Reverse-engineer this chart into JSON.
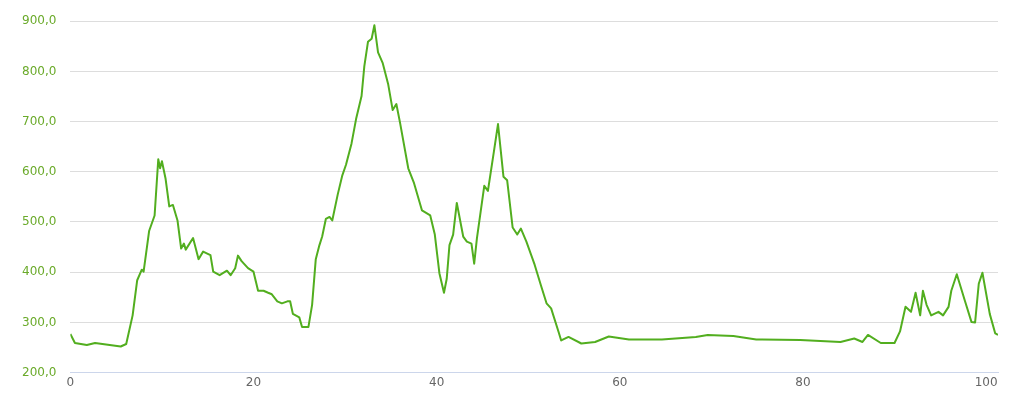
{
  "chart_data": {
    "type": "line",
    "xlim": [
      0,
      101.3
    ],
    "xticks": [
      0,
      20,
      40,
      60,
      80,
      100
    ],
    "ylim": [
      200,
      900
    ],
    "yticks": [
      {
        "value": 200,
        "label": "200,0"
      },
      {
        "value": 300,
        "label": "300,0"
      },
      {
        "value": 400,
        "label": "400,0"
      },
      {
        "value": 500,
        "label": "500,0"
      },
      {
        "value": 600,
        "label": "600,0"
      },
      {
        "value": 700,
        "label": "700,0"
      },
      {
        "value": 800,
        "label": "800,0"
      },
      {
        "value": 900,
        "label": "900,0"
      }
    ],
    "grid": "y",
    "legend": false,
    "marker": "none",
    "series": [
      {
        "color": "#52ae1f",
        "x": [
          0,
          0.5,
          1.8,
          2.7,
          5.5,
          6.1,
          6.8,
          7.3,
          7.8,
          8.0,
          8.6,
          9.2,
          9.6,
          9.8,
          10.0,
          10.4,
          10.8,
          11.2,
          11.7,
          12.1,
          12.4,
          12.6,
          13.4,
          14.0,
          14.5,
          15.3,
          15.6,
          16.3,
          17.1,
          17.5,
          18.0,
          18.3,
          18.7,
          19.4,
          20.0,
          20.5,
          21.1,
          21.6,
          22.0,
          22.6,
          23.1,
          23.7,
          24.0,
          24.3,
          25.0,
          25.3,
          26.0,
          26.4,
          26.8,
          27.2,
          27.5,
          27.9,
          28.3,
          28.6,
          29.2,
          29.7,
          30.1,
          30.7,
          31.2,
          31.8,
          32.1,
          32.5,
          32.9,
          33.2,
          33.6,
          34.1,
          34.7,
          35.2,
          35.6,
          36.0,
          36.9,
          37.5,
          38.4,
          39.3,
          39.8,
          40.3,
          40.8,
          41.1,
          41.4,
          41.8,
          42.2,
          42.9,
          43.3,
          43.8,
          44.1,
          44.4,
          45.2,
          45.6,
          46.3,
          46.7,
          47.3,
          47.7,
          48.3,
          48.8,
          49.2,
          49.8,
          50.7,
          51.4,
          52.0,
          52.5,
          53.3,
          53.6,
          54.4,
          55.8,
          57.3,
          58.8,
          61.0,
          64.6,
          68.3,
          69.6,
          72.4,
          74.9,
          79.7,
          84.1,
          85.6,
          86.5,
          87.1,
          88.5,
          90.0,
          90.6,
          91.2,
          91.8,
          92.3,
          92.8,
          93.1,
          93.5,
          94.0,
          94.8,
          95.3,
          95.9,
          96.2,
          96.8,
          97.7,
          98.4,
          98.8,
          99.2,
          99.6,
          100.4,
          101.0,
          101.3
        ],
        "values": [
          277,
          259,
          255,
          259,
          252,
          257,
          314,
          384,
          405,
          401,
          482,
          513,
          625,
          607,
          621,
          586,
          531,
          534,
          503,
          447,
          457,
          445,
          468,
          426,
          441,
          434,
          401,
          394,
          403,
          394,
          408,
          433,
          422,
          408,
          401,
          363,
          363,
          359,
          356,
          342,
          338,
          342,
          342,
          317,
          310,
          291,
          291,
          335,
          426,
          454,
          471,
          506,
          510,
          503,
          555,
          593,
          614,
          656,
          705,
          751,
          810,
          859,
          865,
          892,
          838,
          817,
          775,
          723,
          735,
          698,
          607,
          579,
          523,
          513,
          475,
          398,
          359,
          387,
          454,
          475,
          538,
          471,
          461,
          457,
          417,
          468,
          572,
          562,
          646,
          695,
          590,
          583,
          489,
          475,
          487,
          461,
          415,
          373,
          338,
          328,
          282,
          264,
          271,
          258,
          261,
          272,
          266,
          266,
          271,
          275,
          273,
          266,
          265,
          261,
          268,
          261,
          275,
          259,
          259,
          282,
          331,
          321,
          359,
          314,
          363,
          335,
          314,
          321,
          314,
          331,
          363,
          396,
          342,
          301,
          300,
          377,
          399,
          317,
          278,
          275
        ]
      }
    ]
  }
}
